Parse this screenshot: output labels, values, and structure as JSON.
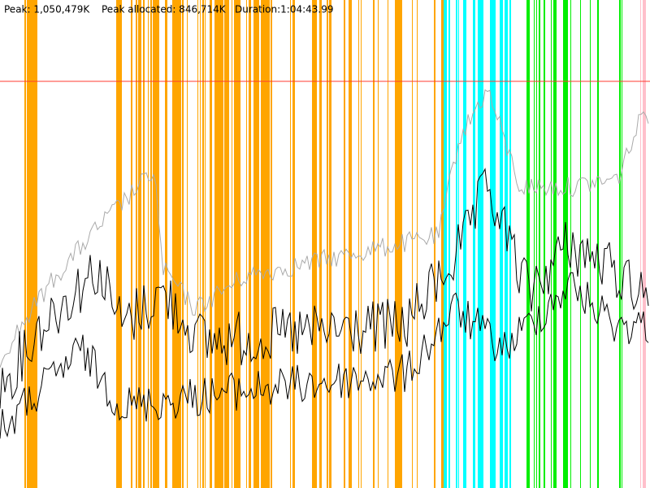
{
  "header": {
    "peak": "Peak: 1,050,479K",
    "peak_allocated": "Peak allocated: 846,714K",
    "duration": "Duration:1:04:43.99"
  }
}
